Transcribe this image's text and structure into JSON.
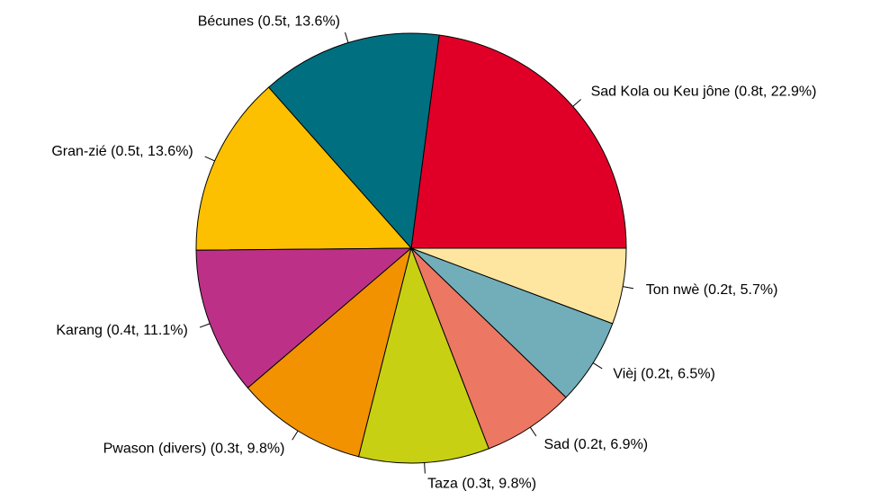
{
  "chart_data": {
    "type": "pie",
    "categories": [
      "Sad Kola ou Keu jône",
      "Bécunes",
      "Gran-zié",
      "Karang",
      "Pwason (divers)",
      "Taza",
      "Sad",
      "Vièj",
      "Ton nwè"
    ],
    "values": [
      22.9,
      13.6,
      13.6,
      11.1,
      9.8,
      9.8,
      6.9,
      6.5,
      5.7
    ],
    "value_labels": [
      "(0.8t, 22.9%)",
      "(0.5t, 13.6%)",
      "(0.5t, 13.6%)",
      "(0.4t, 11.1%)",
      "(0.3t, 9.8%)",
      "(0.3t, 9.8%)",
      "(0.2t, 6.9%)",
      "(0.2t, 6.5%)",
      "(0.2t, 5.7%)"
    ],
    "colors": [
      "#e00027",
      "#007080",
      "#fcc000",
      "#bc3187",
      "#f29200",
      "#c8d013",
      "#ec7762",
      "#72aeb9",
      "#fee6a0"
    ]
  }
}
